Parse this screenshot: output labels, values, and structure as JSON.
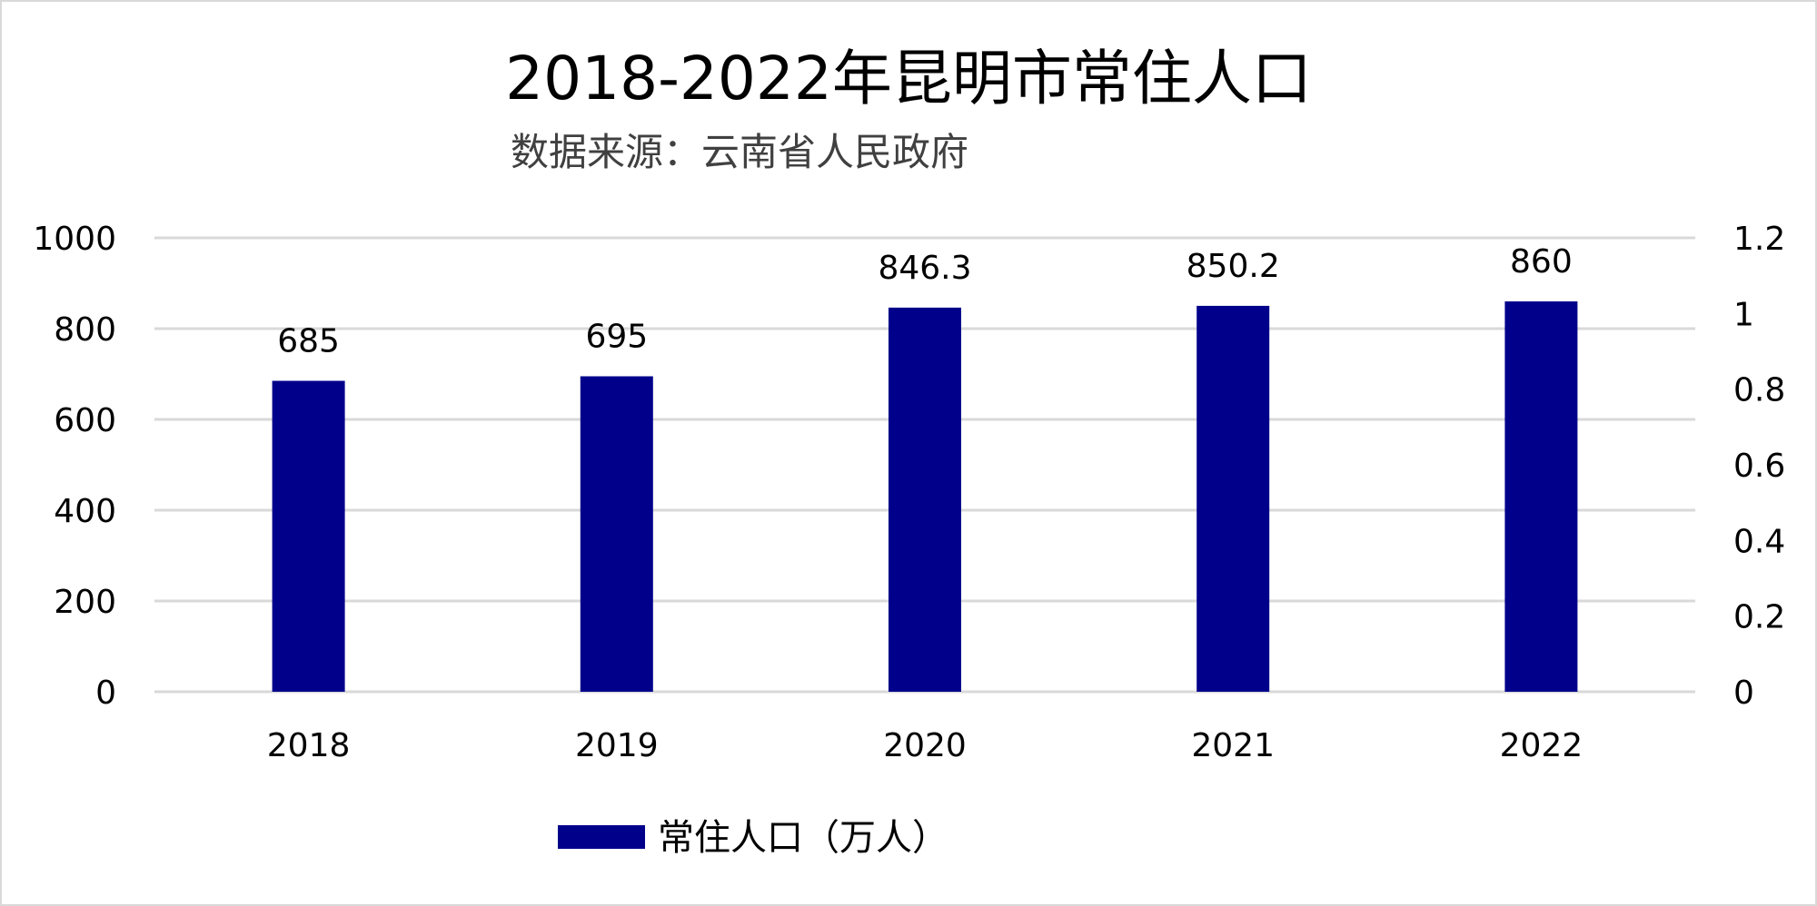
{
  "chart_data": {
    "type": "bar",
    "title": "2018-2022年昆明市常住人口",
    "subtitle": "数据来源：云南省人民政府",
    "categories": [
      "2018",
      "2019",
      "2020",
      "2021",
      "2022"
    ],
    "series": [
      {
        "name": "常住人口（万人）",
        "values": [
          685,
          695,
          846.3,
          850.2,
          860
        ],
        "labels": [
          "685",
          "695",
          "846.3",
          "850.2",
          "860"
        ],
        "color": "#00008b"
      }
    ],
    "y_left": {
      "ylim": [
        0,
        1000
      ],
      "ticks": [
        "0",
        "200",
        "400",
        "600",
        "800",
        "1000"
      ]
    },
    "y_right": {
      "ylim": [
        0,
        1.2
      ],
      "ticks": [
        "0",
        "0.2",
        "0.4",
        "0.6",
        "0.8",
        "1",
        "1.2"
      ]
    },
    "grid": true,
    "legend_position": "bottom",
    "gridline_color": "#d9d9d9"
  }
}
